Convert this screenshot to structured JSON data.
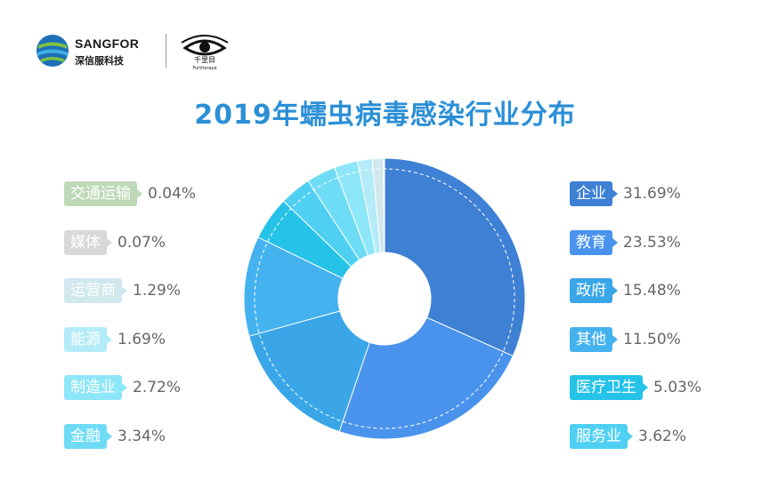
{
  "brand": {
    "name": "SANGFOR",
    "sub": "深信服科技",
    "eye_text": "千里目",
    "eye_sub": "Furtheraye"
  },
  "title": "2019年蠕虫病毒感染行业分布",
  "colors": {
    "企业": "#3e80d4",
    "教育": "#4a93ec",
    "政府": "#3aa6e8",
    "其他": "#45b2f0",
    "医疗卫生": "#25c3e8",
    "服务业": "#4fd0f3",
    "金融": "#6fdcf6",
    "制造业": "#8ee6f9",
    "能源": "#b3ecf8",
    "运营商": "#d0e8ee",
    "媒体": "#d8d8d8",
    "交通运输": "#bfd9b8"
  },
  "chart_data": {
    "type": "pie",
    "donut": true,
    "title": "2019年蠕虫病毒感染行业分布",
    "categories": [
      "企业",
      "教育",
      "政府",
      "其他",
      "医疗卫生",
      "服务业",
      "金融",
      "制造业",
      "能源",
      "运营商",
      "媒体",
      "交通运输"
    ],
    "values": [
      31.69,
      23.53,
      15.48,
      11.5,
      5.03,
      3.62,
      3.34,
      2.72,
      1.69,
      1.29,
      0.07,
      0.04
    ],
    "labels": [
      "31.69%",
      "23.53%",
      "15.48%",
      "11.50%",
      "5.03%",
      "3.62%",
      "3.34%",
      "2.72%",
      "1.69%",
      "1.29%",
      "0.07%",
      "0.04%"
    ],
    "legend_left": [
      {
        "name": "交通运输",
        "pct": "0.04%"
      },
      {
        "name": "媒体",
        "pct": "0.07%"
      },
      {
        "name": "运营商",
        "pct": "1.29%"
      },
      {
        "name": "能源",
        "pct": "1.69%"
      },
      {
        "name": "制造业",
        "pct": "2.72%"
      },
      {
        "name": "金融",
        "pct": "3.34%"
      }
    ],
    "legend_right": [
      {
        "name": "企业",
        "pct": "31.69%"
      },
      {
        "name": "教育",
        "pct": "23.53%"
      },
      {
        "name": "政府",
        "pct": "15.48%"
      },
      {
        "name": "其他",
        "pct": "11.50%"
      },
      {
        "name": "医疗卫生",
        "pct": "5.03%"
      },
      {
        "name": "服务业",
        "pct": "3.62%"
      }
    ]
  }
}
